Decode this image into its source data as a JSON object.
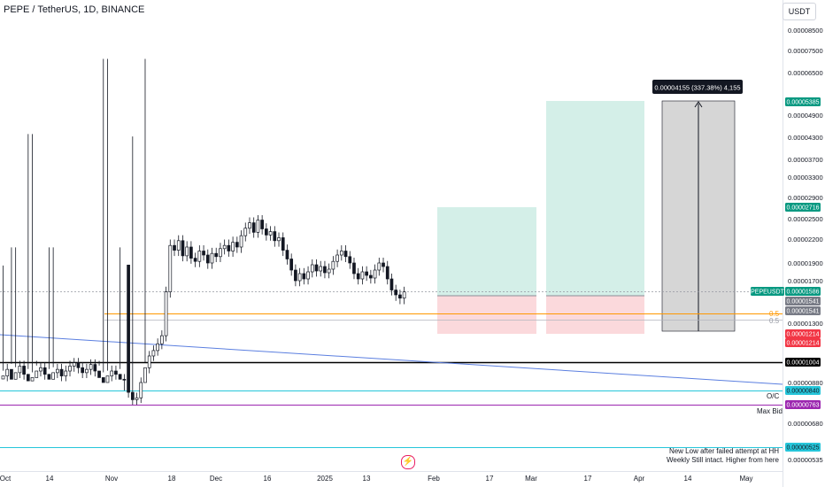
{
  "header": {
    "title": "PEPE / TetherUS, 1D, BINANCE"
  },
  "price_scale": {
    "currency": "USDT",
    "tick_labels": [
      "0.00008500",
      "0.00007500",
      "0.00006500",
      "0.00004900",
      "0.00004300",
      "0.00003700",
      "0.00003300",
      "0.00002900",
      "0.00002500",
      "0.00002200",
      "0.00001900",
      "0.00001700",
      "0.00001300",
      "0.00000880",
      "0.00000680",
      "0.00000535"
    ],
    "badges": [
      {
        "text": "0.00005385",
        "color": "#089981",
        "text_color": "#ffffff"
      },
      {
        "text": "0.00002716",
        "color": "#089981",
        "text_color": "#ffffff"
      },
      {
        "text": "PEPEUSDT",
        "color": "#089981",
        "text_color": "#ffffff"
      },
      {
        "text": "0.00001586",
        "color": "#089981",
        "text_color": "#ffffff"
      },
      {
        "text": "0.00001541",
        "color": "#787b86",
        "text_color": "#ffffff"
      },
      {
        "text": "0.00001541",
        "color": "#787b86",
        "text_color": "#ffffff"
      },
      {
        "text": "0.00001214",
        "color": "#f23645",
        "text_color": "#ffffff"
      },
      {
        "text": "0.00001214",
        "color": "#f23645",
        "text_color": "#ffffff"
      },
      {
        "text": "0.00001004",
        "color": "#000000",
        "text_color": "#ffffff"
      },
      {
        "text": "0.00000840",
        "color": "#26c6da",
        "text_color": "#131722"
      },
      {
        "text": "0.00000763",
        "color": "#9c27b0",
        "text_color": "#ffffff"
      },
      {
        "text": "0.00000525",
        "color": "#26c6da",
        "text_color": "#131722"
      }
    ]
  },
  "time_axis": {
    "labels": [
      "Oct",
      "14",
      "Nov",
      "18",
      "Dec",
      "16",
      "2025",
      "13",
      "Feb",
      "17",
      "Mar",
      "17",
      "Apr",
      "14",
      "May"
    ]
  },
  "annotations": {
    "measure_label": "0.00004155 (337.38%) 4,155",
    "fib_labels": [
      "0.5",
      "0.5"
    ],
    "oc_label": "O/C",
    "max_bid_label": "Max Bid",
    "note_lines": [
      "New Low after failed attempt at HH",
      "Weekly Still intact. Higher from here"
    ]
  },
  "colors": {
    "up": "#131722",
    "down": "#131722",
    "orange_line": "#ff9800",
    "black_line": "#000000",
    "cyan_line": "#26c6da",
    "purple_line": "#9c27b0",
    "blue_trend": "#5b7fe0",
    "profit_zone": "#d4efe8",
    "loss_zone": "#fbd9dc",
    "measure_zone": "#d6d6d6"
  },
  "chart_data": {
    "type": "candlestick",
    "symbol": "PEPEUSDT",
    "interval": "1D",
    "y_unit": "USDT",
    "approx_daily_close": [
      9.2e-06,
      9.6e-06,
      9e-06,
      9.4e-06,
      9.8e-06,
      9.3e-06,
      8.9e-06,
      9.1e-06,
      9.5e-06,
      9.7e-06,
      9.3e-06,
      9e-06,
      9.4e-06,
      9.6e-06,
      9.2e-06,
      9.5e-06,
      9.8e-06,
      1e-05,
      9.7e-06,
      9.4e-06,
      9.6e-06,
      9.9e-06,
      9.5e-06,
      9.1e-06,
      8.8e-06,
      9.2e-06,
      9.5e-06,
      9.3e-06,
      9e-06,
      8.7e-06,
      8.3e-06,
      7.9e-06,
      8e-06,
      8.8e-06,
      9.7e-06,
      1.05e-05,
      1.09e-05,
      1.14e-05,
      1.2e-05,
      1.58e-05,
      2.12e-05,
      2.06e-05,
      2.18e-05,
      1.99e-05,
      2.1e-05,
      1.96e-05,
      1.92e-05,
      2.05e-05,
      2e-05,
      1.9e-05,
      2.02e-05,
      1.98e-05,
      2.08e-05,
      2.12e-05,
      2.05e-05,
      2.16e-05,
      2.1e-05,
      2.25e-05,
      2.36e-05,
      2.44e-05,
      2.3e-05,
      2.48e-05,
      2.35e-05,
      2.26e-05,
      2.31e-05,
      2.18e-05,
      2.22e-05,
      2.06e-05,
      1.95e-05,
      1.82e-05,
      1.7e-05,
      1.78e-05,
      1.72e-05,
      1.8e-05,
      1.88e-05,
      1.81e-05,
      1.86e-05,
      1.79e-05,
      1.83e-05,
      1.92e-05,
      2e-05,
      2.05e-05,
      1.98e-05,
      1.9e-05,
      1.78e-05,
      1.72e-05,
      1.8e-05,
      1.76e-05,
      1.73e-05,
      1.82e-05,
      1.9e-05,
      1.86e-05,
      1.72e-05,
      1.6e-05,
      1.55e-05,
      1.52e-05,
      1.58e-05
    ],
    "horizontal_levels": [
      {
        "name": "orange",
        "value": 1.541e-05
      },
      {
        "name": "black",
        "value": 1.004e-05
      },
      {
        "name": "cyan-oc",
        "value": 8.4e-06
      },
      {
        "name": "purple-max-bid",
        "value": 7.63e-06
      },
      {
        "name": "cyan-low",
        "value": 5.25e-06
      }
    ],
    "positions": [
      {
        "entry": 1.541e-05,
        "target": 2.716e-05,
        "stop": 1.214e-05
      },
      {
        "entry": 1.541e-05,
        "target": 5.385e-05,
        "stop": 1.214e-05
      }
    ],
    "measure": {
      "from": 1.23e-05,
      "to": 5.385e-05
    }
  }
}
